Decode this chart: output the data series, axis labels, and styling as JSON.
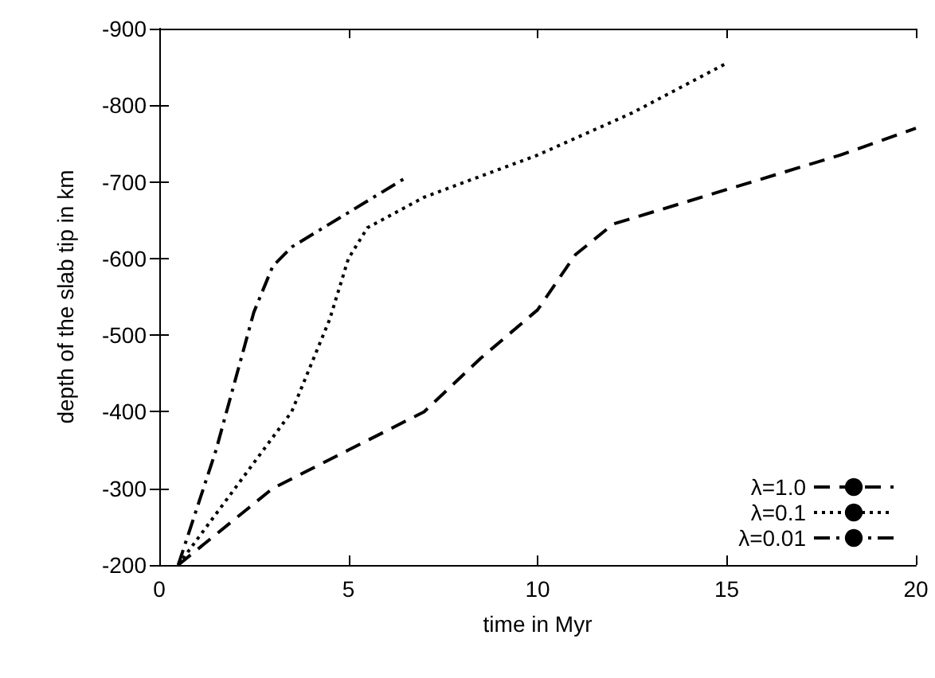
{
  "chart_data": {
    "type": "line",
    "xlabel": "time in Myr",
    "ylabel": "depth of the slab tip in km",
    "xlim": [
      0,
      20
    ],
    "xticks": [
      0,
      5,
      10,
      15,
      20
    ],
    "ylim": [
      -200,
      -900
    ],
    "yticks": [
      -200,
      -300,
      -400,
      -500,
      -600,
      -700,
      -800,
      -900
    ],
    "grid": false,
    "legend": "bottom right",
    "marker": "none",
    "series": [
      {
        "name": "λ=1.0",
        "color": "#000000",
        "line_style": "dashed",
        "x": [
          0.5,
          2,
          3,
          5,
          7,
          8.5,
          10,
          11,
          12,
          15,
          18,
          20
        ],
        "values": [
          -200,
          -260,
          -300,
          -350,
          -400,
          -470,
          -533,
          -605,
          -645,
          -690,
          -735,
          -770
        ]
      },
      {
        "name": "λ=0.1",
        "color": "#000000",
        "line_style": "dotted",
        "x": [
          0.5,
          2,
          3.5,
          4.5,
          5,
          5.5,
          7,
          10,
          12.5,
          15
        ],
        "values": [
          -200,
          -300,
          -400,
          -520,
          -600,
          -640,
          -680,
          -735,
          -790,
          -855
        ]
      },
      {
        "name": "λ=0.01",
        "color": "#000000",
        "line_style": "dashdot",
        "x": [
          0.5,
          1.5,
          2.5,
          3,
          3.5,
          5,
          6.5
        ],
        "values": [
          -200,
          -350,
          -530,
          -590,
          -615,
          -660,
          -705
        ]
      }
    ]
  }
}
